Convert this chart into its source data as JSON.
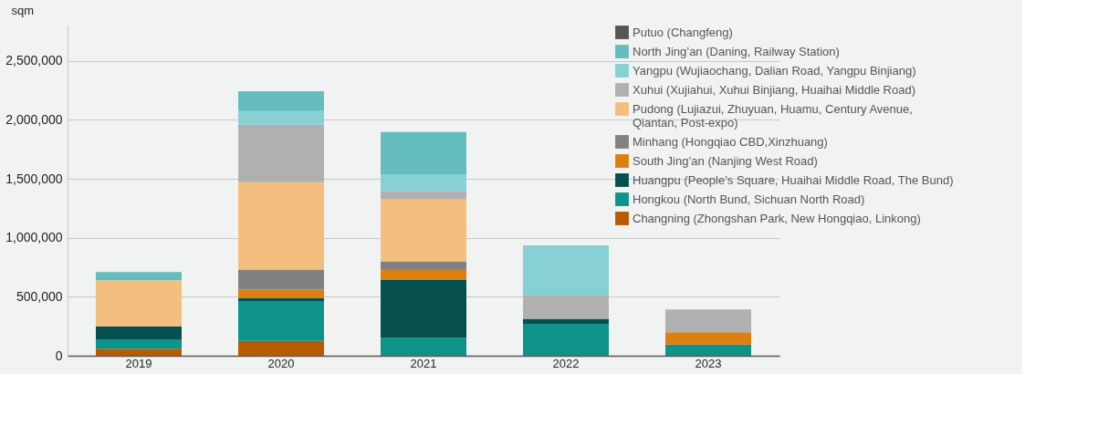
{
  "chart_data": {
    "type": "bar",
    "stacked": true,
    "ylabel": "sqm",
    "categories": [
      "2019",
      "2020",
      "2021",
      "2022",
      "2023"
    ],
    "ylim": [
      0,
      2800000
    ],
    "yticks": [
      {
        "value": 0,
        "label": "0"
      },
      {
        "value": 500000,
        "label": "500,000"
      },
      {
        "value": 1000000,
        "label": "1,000,000"
      },
      {
        "value": 1500000,
        "label": "1,500,000"
      },
      {
        "value": 2000000,
        "label": "2,000,000"
      },
      {
        "value": 2500000,
        "label": "2,500,000"
      }
    ],
    "grid": "y",
    "legend": "top right",
    "series": [
      {
        "name": "Changning (Zhongshan Park, New Hongqiao, Linkong)",
        "color": "#b85a00",
        "values": [
          60000,
          125000,
          null,
          null,
          null
        ]
      },
      {
        "name": "Hongkou  (North Bund, Sichuan North Road)",
        "color": "#0e938b",
        "values": [
          80000,
          340000,
          150000,
          270000,
          95000
        ]
      },
      {
        "name": "Huangpu (People’s Square, Huaihai Middle Road, The Bund)",
        "color": "#054f4f",
        "values": [
          110000,
          26000,
          495000,
          43000,
          null
        ]
      },
      {
        "name": "South Jing’an (Nanjing West Road)",
        "color": "#dc7f0f",
        "values": [
          null,
          70000,
          90000,
          null,
          105000
        ]
      },
      {
        "name": "Minhang (Hongqiao CBD,Xinzhuang)",
        "color": "#818181",
        "values": [
          null,
          170000,
          65000,
          null,
          null
        ]
      },
      {
        "name": "Pudong (Lujiazui, Zhuyuan, Huamu, Century Avenue,\nQiantan, Post-expo)",
        "color": "#f3bf7e",
        "values": [
          390000,
          740000,
          525000,
          null,
          null
        ]
      },
      {
        "name": "Xuhui (Xujiahui, Xuhui Binjiang, Huaihai Middle Road)",
        "color": "#b0b0b0",
        "values": [
          null,
          487000,
          71000,
          197000,
          193000
        ]
      },
      {
        "name": "Yangpu (Wujiaochang, Dalian Road, Yangpu Binjiang)",
        "color": "#87d1d5",
        "values": [
          null,
          117000,
          143000,
          426000,
          null
        ]
      },
      {
        "name": "North Jing’an (Daning, Railway Station)",
        "color": "#65bdbe",
        "values": [
          70000,
          169000,
          357000,
          null,
          null
        ]
      },
      {
        "name": "Putuo (Changfeng)",
        "color": "#555555",
        "values": [
          null,
          null,
          null,
          null,
          null
        ]
      }
    ]
  }
}
